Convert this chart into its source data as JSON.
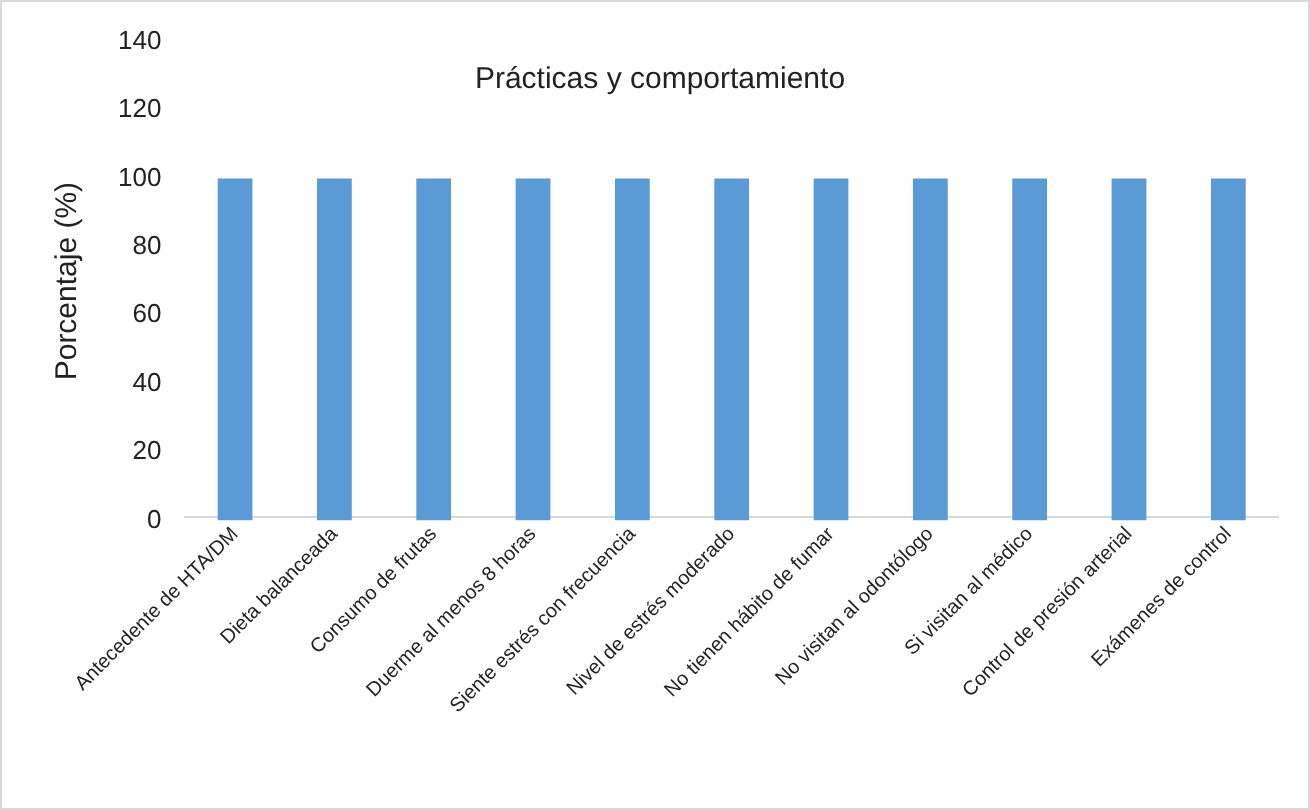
{
  "chart_data": {
    "type": "bar",
    "title": "Prácticas y comportamiento",
    "ylabel": "Porcentaje (%)",
    "categories": [
      "Antecedente de HTA/DM",
      "Dieta balanceada",
      "Consumo de frutas",
      "Duerme al menos 8 horas",
      "Siente estrés con frecuencia",
      "Nivel de estrés moderado",
      "No tienen hábito de fumar",
      "No visitan al odontólogo",
      "Si visitan al médico",
      "Control de presión arterial",
      "Exámenes de control"
    ],
    "values": [
      100,
      100,
      100,
      100,
      100,
      100,
      100,
      100,
      100,
      100,
      100
    ],
    "color": "#5b9bd5",
    "ylim": [
      0,
      140
    ],
    "yticks": [
      0,
      20,
      40,
      60,
      80,
      100,
      120,
      140
    ],
    "grid": false,
    "legend": false
  }
}
